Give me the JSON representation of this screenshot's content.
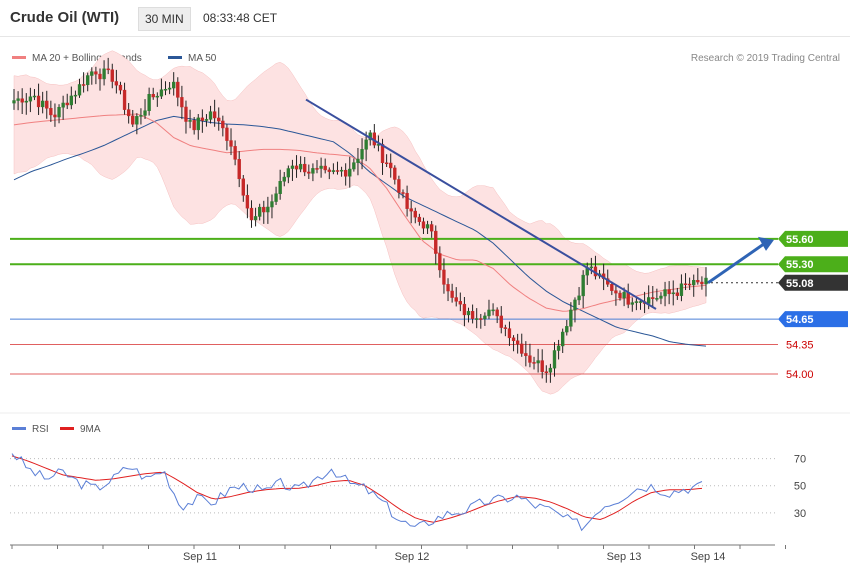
{
  "header": {
    "instrument": "Crude Oil (WTI)",
    "timeframe": "30 MIN",
    "time": "08:33:48 CET"
  },
  "legend": {
    "items": [
      {
        "label": "MA 20 + Bollinger Bands",
        "color": "#f08080"
      },
      {
        "label": "MA 50",
        "color": "#2b5797"
      }
    ],
    "copyright": "Research © 2019 Trading Central"
  },
  "rsi_legend": {
    "items": [
      {
        "label": "RSI",
        "color": "#5b7fd6"
      },
      {
        "label": "9MA",
        "color": "#e02020"
      }
    ]
  },
  "colors": {
    "up": "#2e7d32",
    "down": "#c62828",
    "band_fill": "#fde2e2",
    "resistance": "#4caf1a",
    "pivot": "#4a7fd6",
    "support": "#e06060",
    "trend": "#3a4f9e",
    "arrow": "#2f64b5"
  },
  "chart_data": [
    {
      "type": "candlestick",
      "title": "Crude Oil (WTI)",
      "x_ticks": [
        "Sep 11",
        "Sep 12",
        "Sep 13",
        "Sep 14"
      ],
      "ylim": [
        53.55,
        57.6
      ],
      "levels": [
        {
          "value": 55.6,
          "label": "55.60",
          "kind": "resistance"
        },
        {
          "value": 55.3,
          "label": "55.30",
          "kind": "resistance"
        },
        {
          "value": 55.08,
          "label": "55.08",
          "kind": "last"
        },
        {
          "value": 54.65,
          "label": "54.65",
          "kind": "pivot"
        },
        {
          "value": 54.35,
          "label": "54.35",
          "kind": "support"
        },
        {
          "value": 54.0,
          "label": "54.00",
          "kind": "support"
        }
      ],
      "key_prices": [
        57.24,
        57.3,
        57.05,
        57.32,
        57.6,
        57.53,
        56.95,
        57.28,
        57.45,
        56.9,
        57.1,
        56.72,
        55.8,
        56.02,
        56.5,
        56.41,
        56.35,
        56.45,
        56.82,
        56.46,
        55.9,
        55.72,
        54.92,
        54.68,
        54.76,
        54.5,
        54.2,
        54.05,
        54.66,
        55.27,
        55.05,
        54.9,
        54.89,
        54.93,
        55.05,
        55.08
      ],
      "trendline": {
        "start": 57.25,
        "end": 54.77
      },
      "forecast_target": 55.6,
      "series": [
        {
          "name": "MA 20",
          "values": [
            56.95,
            56.98,
            57.0,
            57.02,
            57.04,
            57.06,
            57.07,
            57.08,
            56.98,
            56.8,
            56.7,
            56.66,
            56.62,
            56.64,
            56.66,
            56.66,
            56.65,
            56.62,
            56.6,
            56.58,
            56.45,
            56.2,
            55.88,
            55.58,
            55.42,
            55.35,
            55.35,
            55.25,
            55.05,
            54.9,
            54.78,
            54.74,
            54.77,
            54.83,
            54.88,
            54.92,
            54.97,
            55.0,
            55.03,
            55.05
          ]
        },
        {
          "name": "MA 50",
          "values": [
            56.3,
            56.4,
            56.47,
            56.55,
            56.62,
            56.7,
            56.8,
            56.9,
            57.0,
            57.05,
            57.02,
            56.98,
            56.96,
            56.95,
            56.93,
            56.9,
            56.85,
            56.8,
            56.75,
            56.6,
            56.4,
            56.25,
            56.1,
            56.0,
            55.9,
            55.8,
            55.7,
            55.55,
            55.35,
            55.15,
            54.98,
            54.85,
            54.75,
            54.65,
            54.55,
            54.5,
            54.45,
            54.38,
            54.35,
            54.33
          ]
        }
      ]
    },
    {
      "type": "line",
      "title": "RSI",
      "ylim": [
        10,
        80
      ],
      "y_ticks": [
        30,
        50,
        70
      ],
      "series": [
        {
          "name": "RSI",
          "values": [
            75,
            62,
            55,
            60,
            52,
            48,
            55,
            65,
            55,
            62,
            35,
            40,
            38,
            48,
            50,
            45,
            52,
            46,
            55,
            63,
            52,
            48,
            38,
            25,
            18,
            25,
            30,
            32,
            38,
            40,
            42,
            36,
            32,
            25,
            20,
            35,
            40,
            48,
            50,
            45,
            48,
            50
          ]
        },
        {
          "name": "9MA",
          "values": [
            72,
            68,
            63,
            58,
            56,
            54,
            55,
            57,
            59,
            60,
            53,
            45,
            40,
            42,
            45,
            47,
            48,
            48,
            50,
            53,
            54,
            50,
            42,
            33,
            26,
            23,
            26,
            30,
            35,
            39,
            42,
            41,
            38,
            33,
            27,
            25,
            31,
            39,
            45,
            47,
            47,
            48
          ]
        }
      ]
    }
  ]
}
